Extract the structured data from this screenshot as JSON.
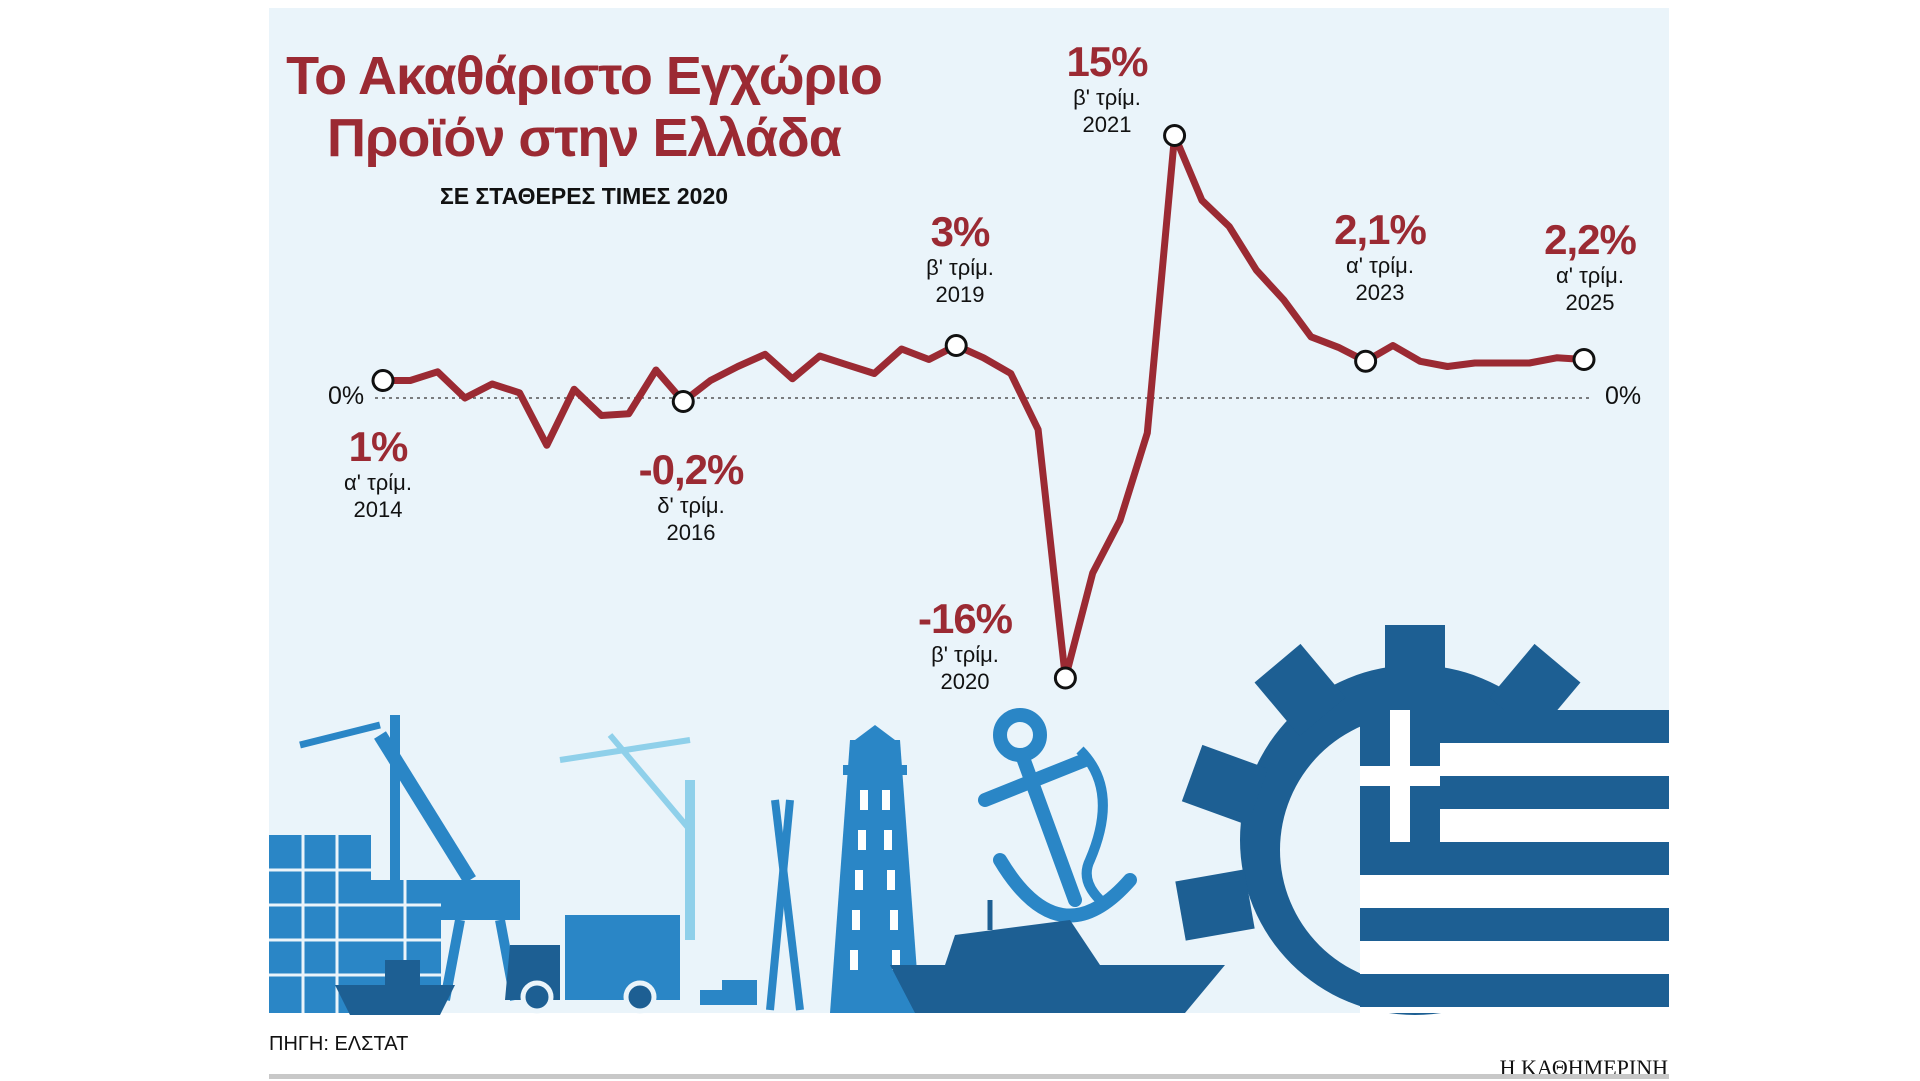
{
  "title_line1": "Το Ακαθάριστο Εγχώριο",
  "title_line2": "Προϊόν στην Ελλάδα",
  "subtitle": "ΣΕ ΣΤΑΘΕΡΕΣ ΤΙΜΕΣ 2020",
  "source": "ΠΗΓΗ: ΕΛΣΤΑΤ",
  "brand": "Η ΚΑΘΗΜΕΡΙΝΗ",
  "zero_label": "0%",
  "colors": {
    "line": "#9b2a33",
    "background": "#eaf4fa",
    "illustration_dark": "#1d5f93",
    "illustration_mid": "#2a86c6",
    "illustration_light": "#8fd0ea"
  },
  "annotations": [
    {
      "value": "1%",
      "quarter": "α' τρίμ.",
      "year": "2014"
    },
    {
      "value": "-0,2%",
      "quarter": "δ' τρίμ.",
      "year": "2016"
    },
    {
      "value": "3%",
      "quarter": "β' τρίμ.",
      "year": "2019"
    },
    {
      "value": "-16%",
      "quarter": "β' τρίμ.",
      "year": "2020"
    },
    {
      "value": "15%",
      "quarter": "β' τρίμ.",
      "year": "2021"
    },
    {
      "value": "2,1%",
      "quarter": "α' τρίμ.",
      "year": "2023"
    },
    {
      "value": "2,2%",
      "quarter": "α' τρίμ.",
      "year": "2025"
    }
  ],
  "chart_data": {
    "type": "line",
    "title": "Το Ακαθάριστο Εγχώριο Προϊόν στην Ελλάδα",
    "subtitle": "ΣΕ ΣΤΑΘΕΡΕΣ ΤΙΜΕΣ 2020",
    "x": [
      "2014 Q1",
      "2014 Q2",
      "2014 Q3",
      "2014 Q4",
      "2015 Q1",
      "2015 Q2",
      "2015 Q3",
      "2015 Q4",
      "2016 Q1",
      "2016 Q2",
      "2016 Q3",
      "2016 Q4",
      "2017 Q1",
      "2017 Q2",
      "2017 Q3",
      "2017 Q4",
      "2018 Q1",
      "2018 Q2",
      "2018 Q3",
      "2018 Q4",
      "2019 Q1",
      "2019 Q2",
      "2019 Q3",
      "2019 Q4",
      "2020 Q1",
      "2020 Q2",
      "2020 Q3",
      "2020 Q4",
      "2021 Q1",
      "2021 Q2",
      "2021 Q3",
      "2021 Q4",
      "2022 Q1",
      "2022 Q2",
      "2022 Q3",
      "2022 Q4",
      "2023 Q1",
      "2023 Q2",
      "2023 Q3",
      "2023 Q4",
      "2024 Q1",
      "2024 Q2",
      "2024 Q3",
      "2024 Q4",
      "2025 Q1"
    ],
    "series": [
      {
        "values": [
          1.0,
          1.0,
          1.5,
          0.0,
          0.8,
          0.3,
          -2.7,
          0.5,
          -1.0,
          -0.9,
          1.6,
          -0.2,
          1.0,
          1.8,
          2.5,
          1.1,
          2.4,
          1.9,
          1.4,
          2.8,
          2.2,
          3.0,
          2.3,
          1.4,
          -1.8,
          -16.0,
          -10.0,
          -7.0,
          -2.0,
          15.0,
          11.3,
          9.8,
          7.3,
          5.6,
          3.5,
          2.9,
          2.1,
          3.0,
          2.1,
          1.8,
          2.0,
          2.0,
          2.0,
          2.3,
          2.2
        ]
      }
    ],
    "annotated_points": [
      {
        "x": "2014 Q1",
        "value": 1.0
      },
      {
        "x": "2016 Q4",
        "value": -0.2
      },
      {
        "x": "2019 Q2",
        "value": 3.0
      },
      {
        "x": "2020 Q2",
        "value": -16.0
      },
      {
        "x": "2021 Q2",
        "value": 15.0
      },
      {
        "x": "2023 Q1",
        "value": 2.1
      },
      {
        "x": "2025 Q1",
        "value": 2.2
      }
    ],
    "reference_line": 0,
    "ylim": [
      -16,
      15
    ],
    "grid": false
  }
}
